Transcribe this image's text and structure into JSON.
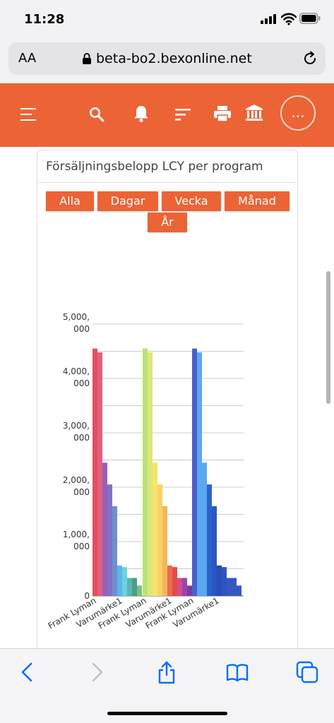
{
  "status_bar": {
    "time": "11:28"
  },
  "browser": {
    "text_size_label": "AA",
    "url": "beta-bo2.bexonline.net"
  },
  "app_header": {
    "more_label": "...",
    "accent": "#ec6336"
  },
  "card": {
    "title": "Försäljningsbelopp LCY per program",
    "period_buttons": [
      "Alla",
      "Dagar",
      "Vecka",
      "Månad",
      "År"
    ]
  },
  "chart_data": {
    "type": "bar",
    "ylim": [
      0,
      5000000
    ],
    "y_ticks": [
      [
        "5,000,",
        "000"
      ],
      [
        "4,000,",
        "000"
      ],
      [
        "3,000,",
        "000"
      ],
      [
        "2,000,",
        "000"
      ],
      [
        "1,000,",
        "000"
      ],
      [
        "0"
      ]
    ],
    "x_tick_labels": [
      "Frank Lyman",
      "Varumärke1",
      "Frank Lyman",
      "Varumärke1",
      "Frank Lyman",
      "Varumärke1"
    ],
    "groups": [
      {
        "values": [
          4550000,
          4480000,
          2450000,
          2050000,
          1650000,
          560000,
          530000,
          330000,
          330000,
          190000
        ],
        "colors": [
          "#e0505f",
          "#e2607d",
          "#9a5fb8",
          "#7f72c4",
          "#6f8fcf",
          "#5fb5ea",
          "#6cd2e0",
          "#57b8b0",
          "#4a9e8e",
          "#7fbf7a"
        ]
      },
      {
        "values": [
          4550000,
          4480000,
          2450000,
          2050000,
          1650000,
          560000,
          530000,
          330000,
          330000,
          190000
        ],
        "colors": [
          "#b9e27a",
          "#dfe67a",
          "#f7e46b",
          "#fbd064",
          "#f7b55c",
          "#ef6a4e",
          "#e24c4a",
          "#d94a8e",
          "#9a45a8",
          "#7a3f9e"
        ]
      },
      {
        "values": [
          4550000,
          4480000,
          2450000,
          2050000,
          1650000,
          560000,
          530000,
          330000,
          330000,
          190000
        ],
        "colors": [
          "#4d5ec9",
          "#5aa8ef",
          "#5aa8ef",
          "#2b62c9",
          "#2b56c4",
          "#2a4db8",
          "#2f54bf",
          "#3358c2",
          "#3358c2",
          "#3358c2"
        ]
      }
    ],
    "grid": true
  }
}
